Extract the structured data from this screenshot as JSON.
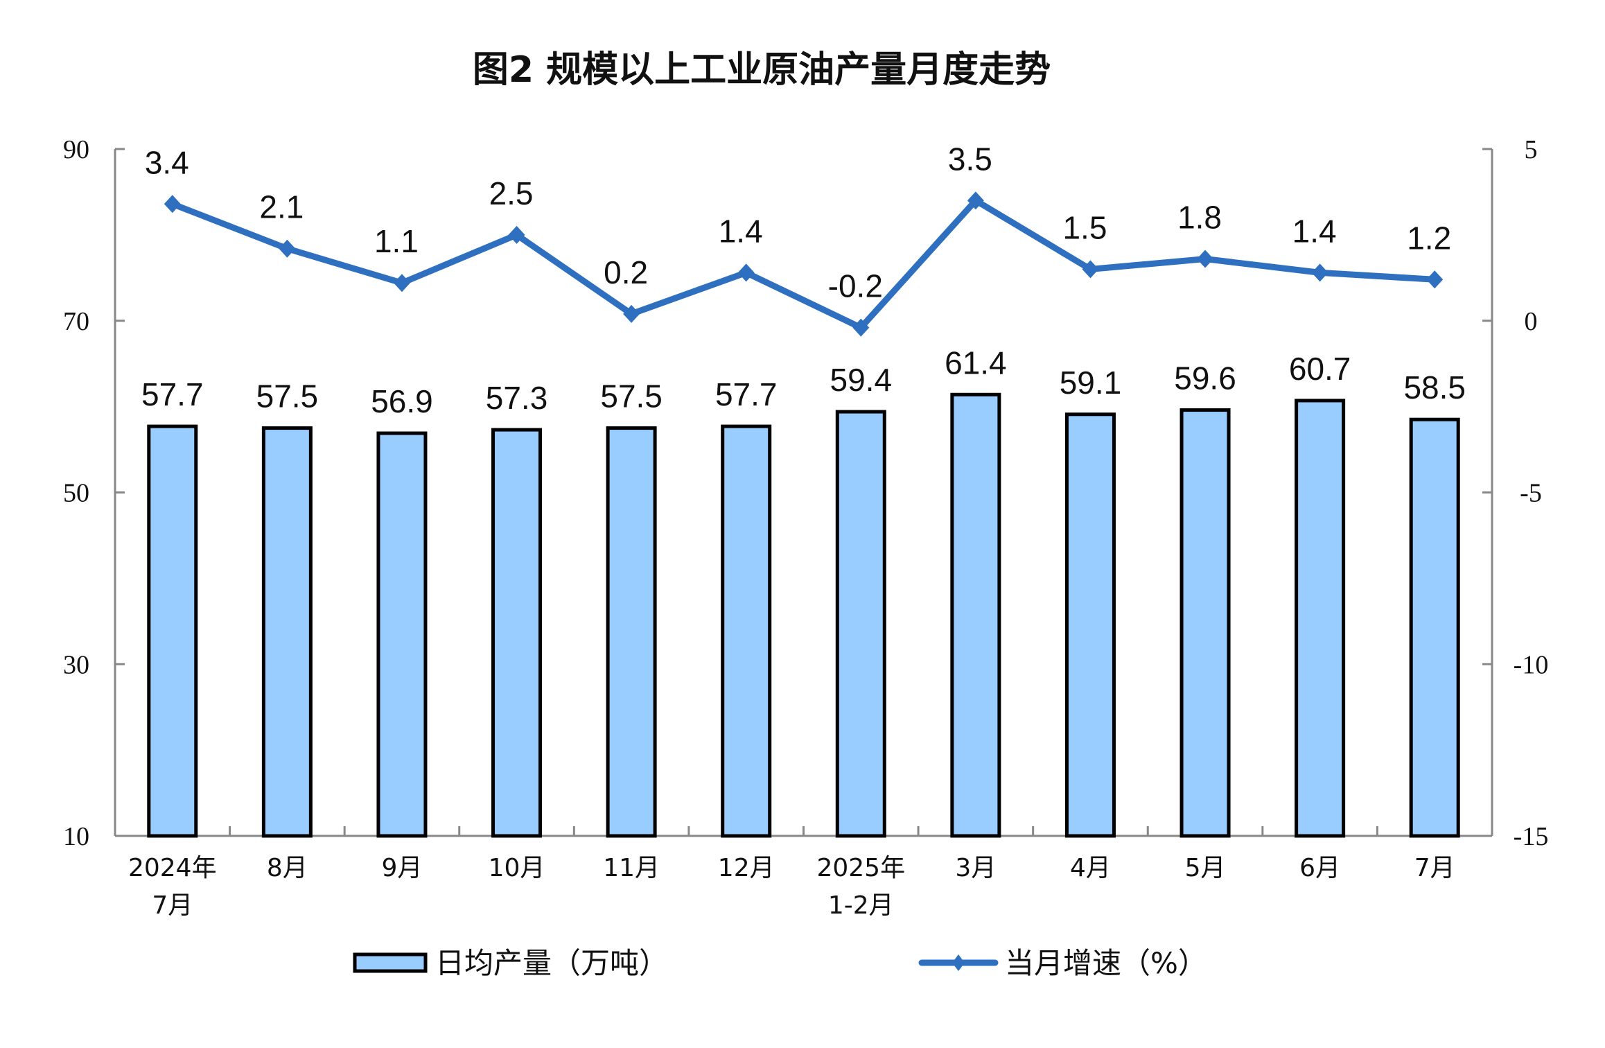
{
  "chart_data": {
    "type": "bar+line",
    "title": "图2  规模以上工业原油产量月度走势",
    "categories": [
      [
        "2024年",
        "7月"
      ],
      [
        "8月"
      ],
      [
        "9月"
      ],
      [
        "10月"
      ],
      [
        "11月"
      ],
      [
        "12月"
      ],
      [
        "2025年",
        "1-2月"
      ],
      [
        "3月"
      ],
      [
        "4月"
      ],
      [
        "5月"
      ],
      [
        "6月"
      ],
      [
        "7月"
      ]
    ],
    "series": [
      {
        "name": "日均产量（万吨）",
        "type": "bar",
        "axis": "left",
        "color": "#99CCFF",
        "values": [
          57.7,
          57.5,
          56.9,
          57.3,
          57.5,
          57.7,
          59.4,
          61.4,
          59.1,
          59.6,
          60.7,
          58.5
        ]
      },
      {
        "name": "当月增速（%）",
        "type": "line",
        "axis": "right",
        "color": "#2E6FC0",
        "values": [
          3.4,
          2.1,
          1.1,
          2.5,
          0.2,
          1.4,
          -0.2,
          3.5,
          1.5,
          1.8,
          1.4,
          1.2
        ]
      }
    ],
    "left_axis": {
      "ylim": [
        10,
        90
      ],
      "ticks": [
        90,
        70,
        50,
        30,
        10
      ]
    },
    "right_axis": {
      "ylim": [
        -15,
        5
      ],
      "ticks": [
        5,
        0,
        -5,
        -10,
        -15
      ]
    },
    "grid": false,
    "legend": "bottom"
  }
}
